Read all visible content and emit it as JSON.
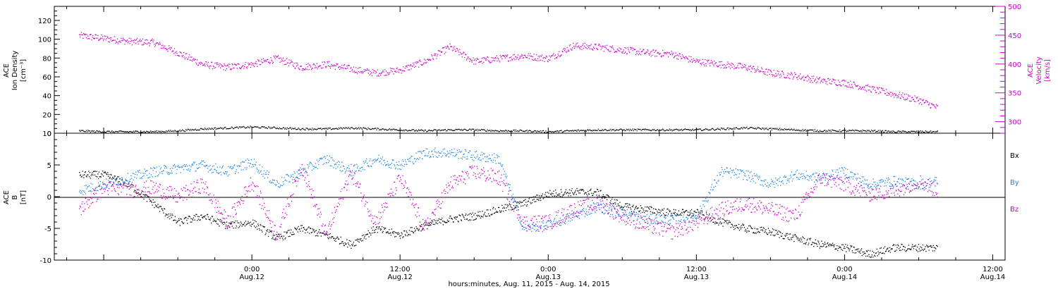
{
  "colors": {
    "density": "#000000",
    "velocity": "#cc00cc",
    "bx": "#000000",
    "by": "#1e88e5",
    "bz": "#cc00cc",
    "axis": "#000000"
  },
  "chart_data": [
    {
      "type": "scatter",
      "panel": "top",
      "ylabel_left": [
        "ACE",
        "Ion Density",
        "[cm⁻³]"
      ],
      "ylabel_right": [
        "ACE",
        "Velocity",
        "[km/s]"
      ],
      "ylim_left": [
        0,
        135
      ],
      "ylim_right": [
        280,
        500
      ],
      "left_ticks": [
        "0",
        "20",
        "40",
        "60",
        "80",
        "100",
        "120"
      ],
      "right_ticks": [
        "300",
        "350",
        "400",
        "450",
        "500"
      ],
      "x_hours": [
        -14,
        -12,
        -10,
        -8,
        -6,
        -4,
        -2,
        0,
        2,
        4,
        6,
        8,
        10,
        12,
        14,
        16,
        18,
        20,
        22,
        24,
        26,
        28,
        30,
        32,
        34,
        36,
        38,
        40,
        42,
        44,
        46,
        48,
        50,
        52,
        54,
        55.5
      ],
      "series": [
        {
          "name": "",
          "axis": "right",
          "color_key": "velocity",
          "values": [
            450,
            445,
            440,
            438,
            420,
            400,
            395,
            400,
            410,
            395,
            400,
            392,
            385,
            390,
            405,
            430,
            405,
            410,
            415,
            410,
            432,
            430,
            425,
            420,
            418,
            405,
            400,
            395,
            385,
            380,
            372,
            368,
            358,
            348,
            338,
            325
          ]
        },
        {
          "name": "",
          "axis": "left",
          "color_key": "density",
          "values": [
            3,
            2,
            2,
            2,
            3,
            5,
            6,
            7,
            6,
            5,
            5,
            6,
            5,
            4,
            3,
            4,
            4,
            3,
            3,
            2,
            3,
            4,
            4,
            4,
            4,
            4,
            5,
            6,
            5,
            4,
            3,
            3,
            3,
            2,
            2,
            2
          ]
        }
      ]
    },
    {
      "type": "scatter",
      "panel": "bottom",
      "ylabel_left": [
        "ACE",
        "B",
        "[nT]"
      ],
      "ylim": [
        -10,
        10
      ],
      "left_ticks": [
        "-10",
        "-5",
        "0",
        "5",
        "10"
      ],
      "x_hours": [
        -14,
        -12,
        -10,
        -8,
        -6,
        -4,
        -2,
        0,
        2,
        4,
        6,
        8,
        10,
        12,
        14,
        16,
        18,
        20,
        22,
        24,
        26,
        28,
        30,
        32,
        34,
        36,
        38,
        40,
        42,
        44,
        46,
        48,
        50,
        52,
        54,
        55.5
      ],
      "series": [
        {
          "name": "Bx",
          "color_key": "bx",
          "values": [
            3.5,
            3.5,
            2.0,
            -1.0,
            -4.0,
            -3.0,
            -4.5,
            -4.0,
            -6.5,
            -5.0,
            -6.0,
            -7.5,
            -5.0,
            -6.0,
            -4.5,
            -3.5,
            -3.0,
            -2.0,
            -1.0,
            0.5,
            0.8,
            0.7,
            -1.5,
            -2.0,
            -2.5,
            -2.5,
            -4.0,
            -5.0,
            -5.5,
            -6.5,
            -7.5,
            -8.0,
            -9.0,
            -8.0,
            -8.0,
            -8.0
          ]
        },
        {
          "name": "By",
          "color_key": "by",
          "values": [
            1.0,
            2.0,
            3.0,
            4.0,
            4.5,
            5.0,
            4.0,
            5.5,
            2.0,
            4.0,
            6.0,
            4.0,
            6.0,
            5.0,
            7.0,
            7.0,
            6.5,
            6.0,
            -5.0,
            -4.5,
            -3.0,
            -1.5,
            -2.5,
            -3.5,
            -3.5,
            -3.0,
            4.0,
            3.5,
            2.0,
            3.5,
            3.0,
            4.0,
            2.0,
            2.5,
            2.0,
            2.5
          ]
        },
        {
          "name": "Bz",
          "color_key": "bz",
          "values": [
            -2.0,
            1.5,
            1.0,
            1.5,
            0.0,
            2.0,
            -4.0,
            2.5,
            -6.0,
            5.0,
            -6.0,
            4.0,
            -4.0,
            3.0,
            -5.0,
            2.0,
            4.0,
            3.0,
            -4.0,
            -4.0,
            -2.0,
            -1.0,
            -3.0,
            -4.5,
            -5.5,
            -4.0,
            -2.0,
            -1.0,
            -2.0,
            -3.0,
            3.0,
            2.0,
            0.5,
            1.0,
            2.5,
            1.0
          ]
        }
      ]
    }
  ],
  "x_axis": {
    "range_hours": [
      -16,
      61
    ],
    "tick_hours": [
      0,
      12,
      24,
      36,
      48,
      60
    ],
    "tick_labels": [
      [
        "0:00",
        "Aug.12"
      ],
      [
        "12:00",
        "Aug.12"
      ],
      [
        "0:00",
        "Aug.13"
      ],
      [
        "12:00",
        "Aug.13"
      ],
      [
        "0:00",
        "Aug.14"
      ],
      [
        "12:00",
        "Aug.14"
      ]
    ],
    "label": "hours:minutes, Aug. 11, 2015 - Aug. 14, 2015"
  }
}
